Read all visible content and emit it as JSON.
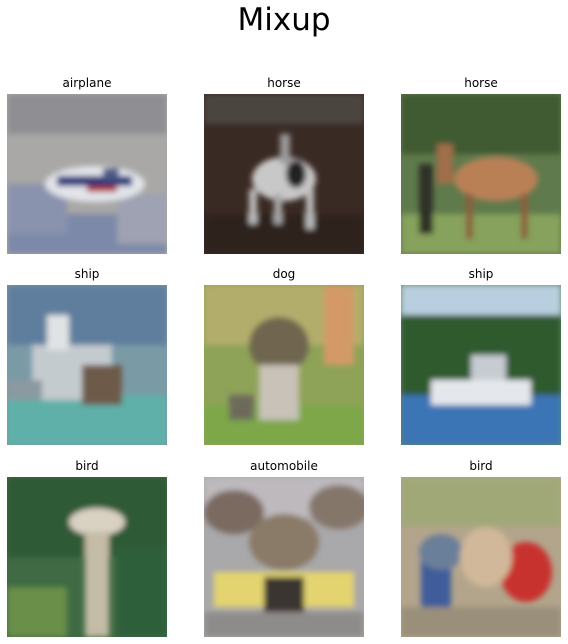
{
  "figure": {
    "title": "Mixup"
  },
  "panels": [
    {
      "label": "airplane",
      "image": "airplane-over-water-photo"
    },
    {
      "label": "horse",
      "image": "white-horse-dark-background-photo"
    },
    {
      "label": "horse",
      "image": "brown-horse-on-grass-photo"
    },
    {
      "label": "ship",
      "image": "boat-with-figure-on-water-photo"
    },
    {
      "label": "dog",
      "image": "dog-standing-on-grass-photo"
    },
    {
      "label": "ship",
      "image": "white-boat-near-forested-shore-photo"
    },
    {
      "label": "bird",
      "image": "ostrich-head-green-background-photo"
    },
    {
      "label": "automobile",
      "image": "yellow-car-with-animal-head-photo"
    },
    {
      "label": "bird",
      "image": "blended-colorful-objects-photo"
    }
  ]
}
